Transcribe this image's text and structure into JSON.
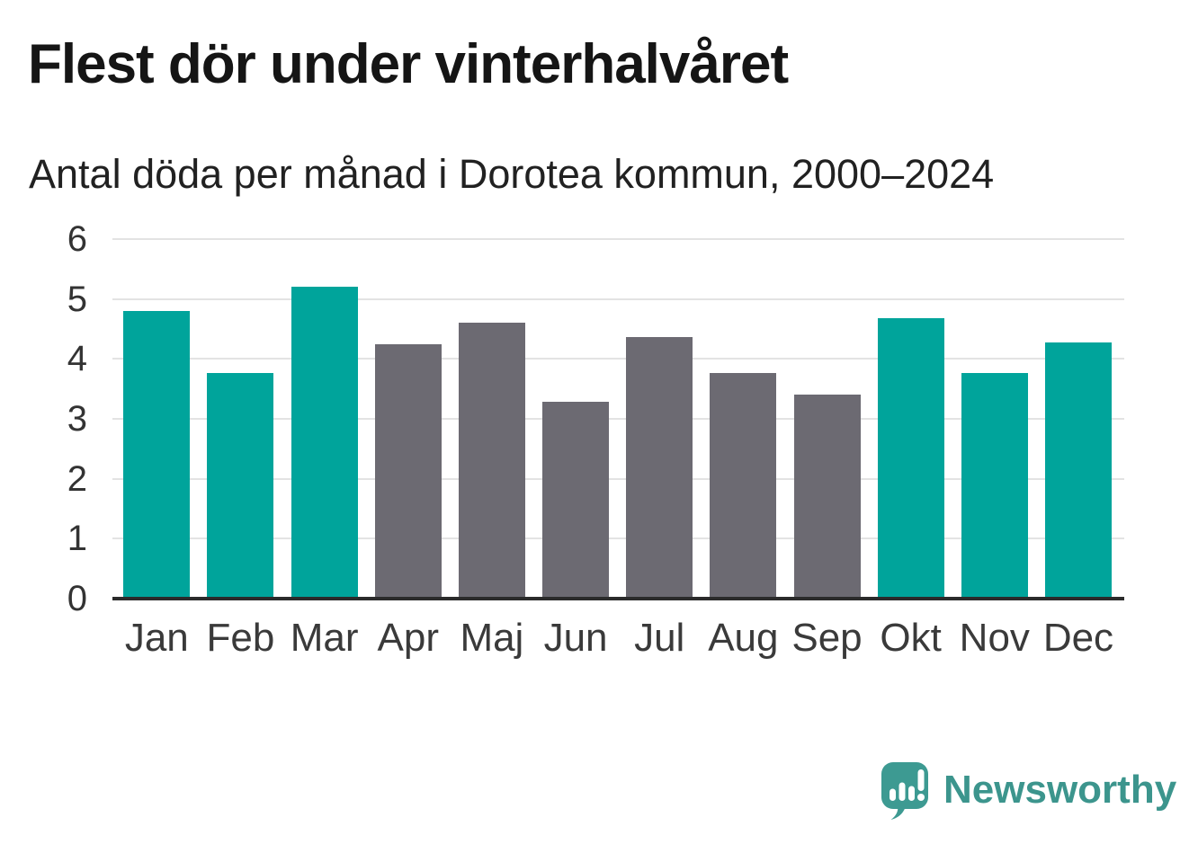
{
  "header": {
    "title": "Flest dör under vinterhalvåret",
    "subtitle": "Antal döda per månad i Dorotea kommun, 2000–2024"
  },
  "chart_data": {
    "type": "bar",
    "title": "Flest dör under vinterhalvåret",
    "subtitle": "Antal döda per månad i Dorotea kommun, 2000–2024",
    "categories": [
      "Jan",
      "Feb",
      "Mar",
      "Apr",
      "Maj",
      "Jun",
      "Jul",
      "Aug",
      "Sep",
      "Okt",
      "Nov",
      "Dec"
    ],
    "values": [
      4.8,
      3.76,
      5.2,
      4.24,
      4.6,
      3.28,
      4.36,
      3.76,
      3.4,
      4.68,
      3.76,
      4.28
    ],
    "bar_colors": [
      "#00a49b",
      "#00a49b",
      "#00a49b",
      "#6c6a72",
      "#6c6a72",
      "#6c6a72",
      "#6c6a72",
      "#6c6a72",
      "#6c6a72",
      "#00a49b",
      "#00a49b",
      "#00a49b"
    ],
    "highlight_months": [
      "Jan",
      "Feb",
      "Mar",
      "Okt",
      "Nov",
      "Dec"
    ],
    "xlabel": "",
    "ylabel": "",
    "ylim": [
      0,
      6
    ],
    "yticks": [
      0,
      1,
      2,
      3,
      4,
      5,
      6
    ],
    "grid": true,
    "legend": "none"
  },
  "footer": {
    "brand": "Newsworthy",
    "logo_icon": "speech-bubble-bar-chart-icon"
  },
  "colors": {
    "highlight": "#00a49b",
    "muted": "#6c6a72",
    "grid": "#e3e3e3",
    "axis": "#2b2b2b",
    "brand": "#3c958d",
    "logo_fill": "#3d9a92",
    "title_text": "#151515"
  }
}
